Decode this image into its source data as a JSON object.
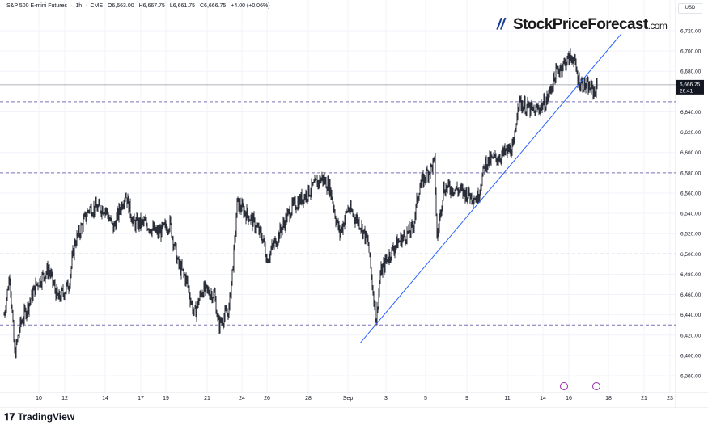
{
  "legend": {
    "symbol": "S&P 500 E-mini Futures",
    "interval": "1h",
    "exchange": "CME",
    "open": "O6,663.00",
    "high": "H6,667.75",
    "low": "L6,661.75",
    "close": "C6,666.75",
    "change": "+4.00 (+0.06%)"
  },
  "currency": "USD",
  "watermark": {
    "brand": "StockPriceForecast",
    "domain": ".com"
  },
  "footer_logo": "TradingView",
  "price_label": {
    "price": "6,666.75",
    "countdown": "26:41"
  },
  "colors": {
    "candle": "#131722",
    "trendline": "#2962ff",
    "dashed": "#7e73b8",
    "grid": "#f0f3fa",
    "event": "#9c27b0"
  },
  "chart_data": {
    "type": "candlestick",
    "title": "S&P 500 E-mini Futures · 1h · CME",
    "ylabel": "USD",
    "ylim": [
      6366,
      6750
    ],
    "yticks": [
      "6,380.00",
      "6,400.00",
      "6,420.00",
      "6,440.00",
      "6,460.00",
      "6,480.00",
      "6,500.00",
      "6,520.00",
      "6,540.00",
      "6,560.00",
      "6,580.00",
      "6,600.00",
      "6,620.00",
      "6,640.00",
      "6,680.00",
      "6,700.00",
      "6,720.00"
    ],
    "ytick_values": [
      6380,
      6400,
      6420,
      6440,
      6460,
      6480,
      6500,
      6520,
      6540,
      6560,
      6580,
      6600,
      6620,
      6640,
      6680,
      6700,
      6720
    ],
    "xticks": [
      {
        "bar": 43,
        "label": "10"
      },
      {
        "bar": 75,
        "label": "12"
      },
      {
        "bar": 125,
        "label": "14"
      },
      {
        "bar": 169,
        "label": "17"
      },
      {
        "bar": 200,
        "label": "19"
      },
      {
        "bar": 251,
        "label": "21"
      },
      {
        "bar": 294,
        "label": "24"
      },
      {
        "bar": 325,
        "label": "26"
      },
      {
        "bar": 376,
        "label": "28"
      },
      {
        "bar": 425,
        "label": "Sep"
      },
      {
        "bar": 472,
        "label": "3"
      },
      {
        "bar": 521,
        "label": "5"
      },
      {
        "bar": 572,
        "label": "9"
      },
      {
        "bar": 622,
        "label": "11"
      },
      {
        "bar": 666,
        "label": "14"
      },
      {
        "bar": 698,
        "label": "16"
      },
      {
        "bar": 747,
        "label": "18"
      },
      {
        "bar": 791,
        "label": "21"
      },
      {
        "bar": 823,
        "label": "23"
      }
    ],
    "price_path": [
      [
        0,
        6440
      ],
      [
        7,
        6480
      ],
      [
        13,
        6400
      ],
      [
        20,
        6430
      ],
      [
        40,
        6470
      ],
      [
        55,
        6485
      ],
      [
        67,
        6455
      ],
      [
        80,
        6470
      ],
      [
        87,
        6510
      ],
      [
        95,
        6525
      ],
      [
        105,
        6545
      ],
      [
        125,
        6545
      ],
      [
        135,
        6525
      ],
      [
        150,
        6560
      ],
      [
        160,
        6530
      ],
      [
        175,
        6530
      ],
      [
        190,
        6520
      ],
      [
        205,
        6530
      ],
      [
        215,
        6490
      ],
      [
        225,
        6475
      ],
      [
        235,
        6440
      ],
      [
        245,
        6465
      ],
      [
        260,
        6460
      ],
      [
        265,
        6430
      ],
      [
        278,
        6445
      ],
      [
        285,
        6510
      ],
      [
        288,
        6550
      ],
      [
        305,
        6535
      ],
      [
        320,
        6515
      ],
      [
        325,
        6495
      ],
      [
        340,
        6520
      ],
      [
        355,
        6545
      ],
      [
        375,
        6560
      ],
      [
        393,
        6575
      ],
      [
        403,
        6565
      ],
      [
        410,
        6535
      ],
      [
        415,
        6520
      ],
      [
        425,
        6545
      ],
      [
        440,
        6530
      ],
      [
        450,
        6510
      ],
      [
        455,
        6470
      ],
      [
        460,
        6435
      ],
      [
        465,
        6480
      ],
      [
        473,
        6495
      ],
      [
        485,
        6510
      ],
      [
        505,
        6525
      ],
      [
        513,
        6565
      ],
      [
        523,
        6580
      ],
      [
        532,
        6590
      ],
      [
        535,
        6515
      ],
      [
        543,
        6565
      ],
      [
        555,
        6565
      ],
      [
        570,
        6560
      ],
      [
        585,
        6555
      ],
      [
        595,
        6590
      ],
      [
        610,
        6595
      ],
      [
        620,
        6600
      ],
      [
        630,
        6605
      ],
      [
        635,
        6650
      ],
      [
        655,
        6640
      ],
      [
        670,
        6650
      ],
      [
        683,
        6680
      ],
      [
        695,
        6690
      ],
      [
        703,
        6695
      ],
      [
        710,
        6670
      ],
      [
        720,
        6665
      ],
      [
        730,
        6660
      ],
      [
        733,
        6666.75
      ]
    ],
    "horizontal_levels": [
      6650,
      6580,
      6500,
      6430
    ],
    "last_price": 6666.75,
    "trendline": [
      [
        440,
        6412
      ],
      [
        763,
        6717
      ]
    ],
    "events": [
      {
        "bar": 692,
        "type": "dividend"
      },
      {
        "bar": 732,
        "type": "earnings"
      }
    ]
  }
}
